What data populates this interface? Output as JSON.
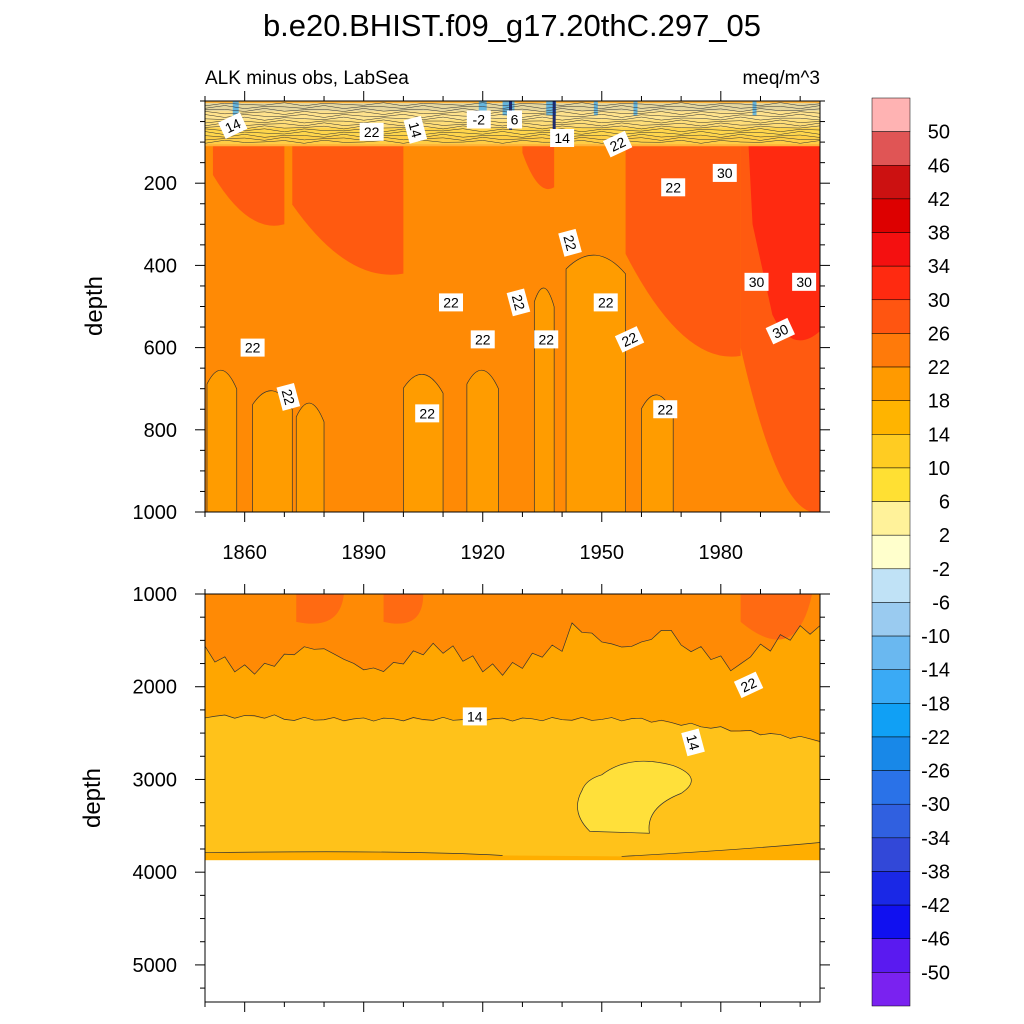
{
  "chart_data": {
    "type": "heatmap",
    "title": "b.e20.BHIST.f09_g17.20thC.297_05",
    "subtitle_left": "ALK minus obs, LabSea",
    "subtitle_right": "meq/m^3",
    "xlabel": "",
    "ylabel": "depth",
    "x_range": [
      1850,
      2005
    ],
    "x_ticks": [
      1860,
      1890,
      1920,
      1950,
      1980
    ],
    "panels": [
      {
        "name": "upper",
        "ylim": [
          0,
          1000
        ],
        "y_inverted": true,
        "y_ticks": [
          200,
          400,
          600,
          800,
          1000
        ],
        "contour_labels": [
          {
            "x": 1857,
            "y": 60,
            "text": "14"
          },
          {
            "x": 1892,
            "y": 75,
            "text": "22"
          },
          {
            "x": 1903,
            "y": 70,
            "text": "14"
          },
          {
            "x": 1919,
            "y": 45,
            "text": "-2"
          },
          {
            "x": 1928,
            "y": 45,
            "text": "6"
          },
          {
            "x": 1940,
            "y": 90,
            "text": "14"
          },
          {
            "x": 1954,
            "y": 105,
            "text": "22"
          },
          {
            "x": 1968,
            "y": 210,
            "text": "22"
          },
          {
            "x": 1942,
            "y": 345,
            "text": "22"
          },
          {
            "x": 1981,
            "y": 175,
            "text": "30"
          },
          {
            "x": 1989,
            "y": 440,
            "text": "30"
          },
          {
            "x": 2001,
            "y": 440,
            "text": "30"
          },
          {
            "x": 1995,
            "y": 560,
            "text": "30"
          },
          {
            "x": 1912,
            "y": 490,
            "text": "22"
          },
          {
            "x": 1929,
            "y": 490,
            "text": "22"
          },
          {
            "x": 1951,
            "y": 490,
            "text": "22"
          },
          {
            "x": 1920,
            "y": 580,
            "text": "22"
          },
          {
            "x": 1936,
            "y": 580,
            "text": "22"
          },
          {
            "x": 1957,
            "y": 580,
            "text": "22"
          },
          {
            "x": 1862,
            "y": 600,
            "text": "22"
          },
          {
            "x": 1871,
            "y": 720,
            "text": "22"
          },
          {
            "x": 1906,
            "y": 760,
            "text": "22"
          },
          {
            "x": 1966,
            "y": 750,
            "text": "22"
          }
        ]
      },
      {
        "name": "lower",
        "ylim": [
          1000,
          5400
        ],
        "y_inverted": true,
        "y_ticks": [
          1000,
          2000,
          3000,
          4000,
          5000
        ],
        "data_bottom_depth": 3870,
        "contour_labels": [
          {
            "x": 1987,
            "y": 1980,
            "text": "22"
          },
          {
            "x": 1918,
            "y": 2320,
            "text": "14"
          },
          {
            "x": 1973,
            "y": 2600,
            "text": "14"
          }
        ]
      }
    ],
    "colorbar": {
      "labels": [
        "50",
        "46",
        "42",
        "38",
        "34",
        "30",
        "26",
        "22",
        "18",
        "14",
        "10",
        "6",
        "2",
        "-2",
        "-6",
        "-10",
        "-14",
        "-18",
        "-22",
        "-26",
        "-30",
        "-34",
        "-38",
        "-42",
        "-46",
        "-50"
      ],
      "colors": [
        "#ffb3b3",
        "#e05555",
        "#cc1111",
        "#dd0000",
        "#f41010",
        "#ff2a10",
        "#ff5511",
        "#ff7a0a",
        "#ff9a00",
        "#ffb400",
        "#ffcc22",
        "#ffe033",
        "#fff29a",
        "#ffffcc",
        "#c0e2f6",
        "#9acbf0",
        "#6ab8f0",
        "#3aaaf5",
        "#10a0f5",
        "#1888e8",
        "#2a72e8",
        "#3060e0",
        "#3248d8",
        "#1a28e6",
        "#1010f0",
        "#5a1af0",
        "#7a22f0"
      ]
    }
  }
}
